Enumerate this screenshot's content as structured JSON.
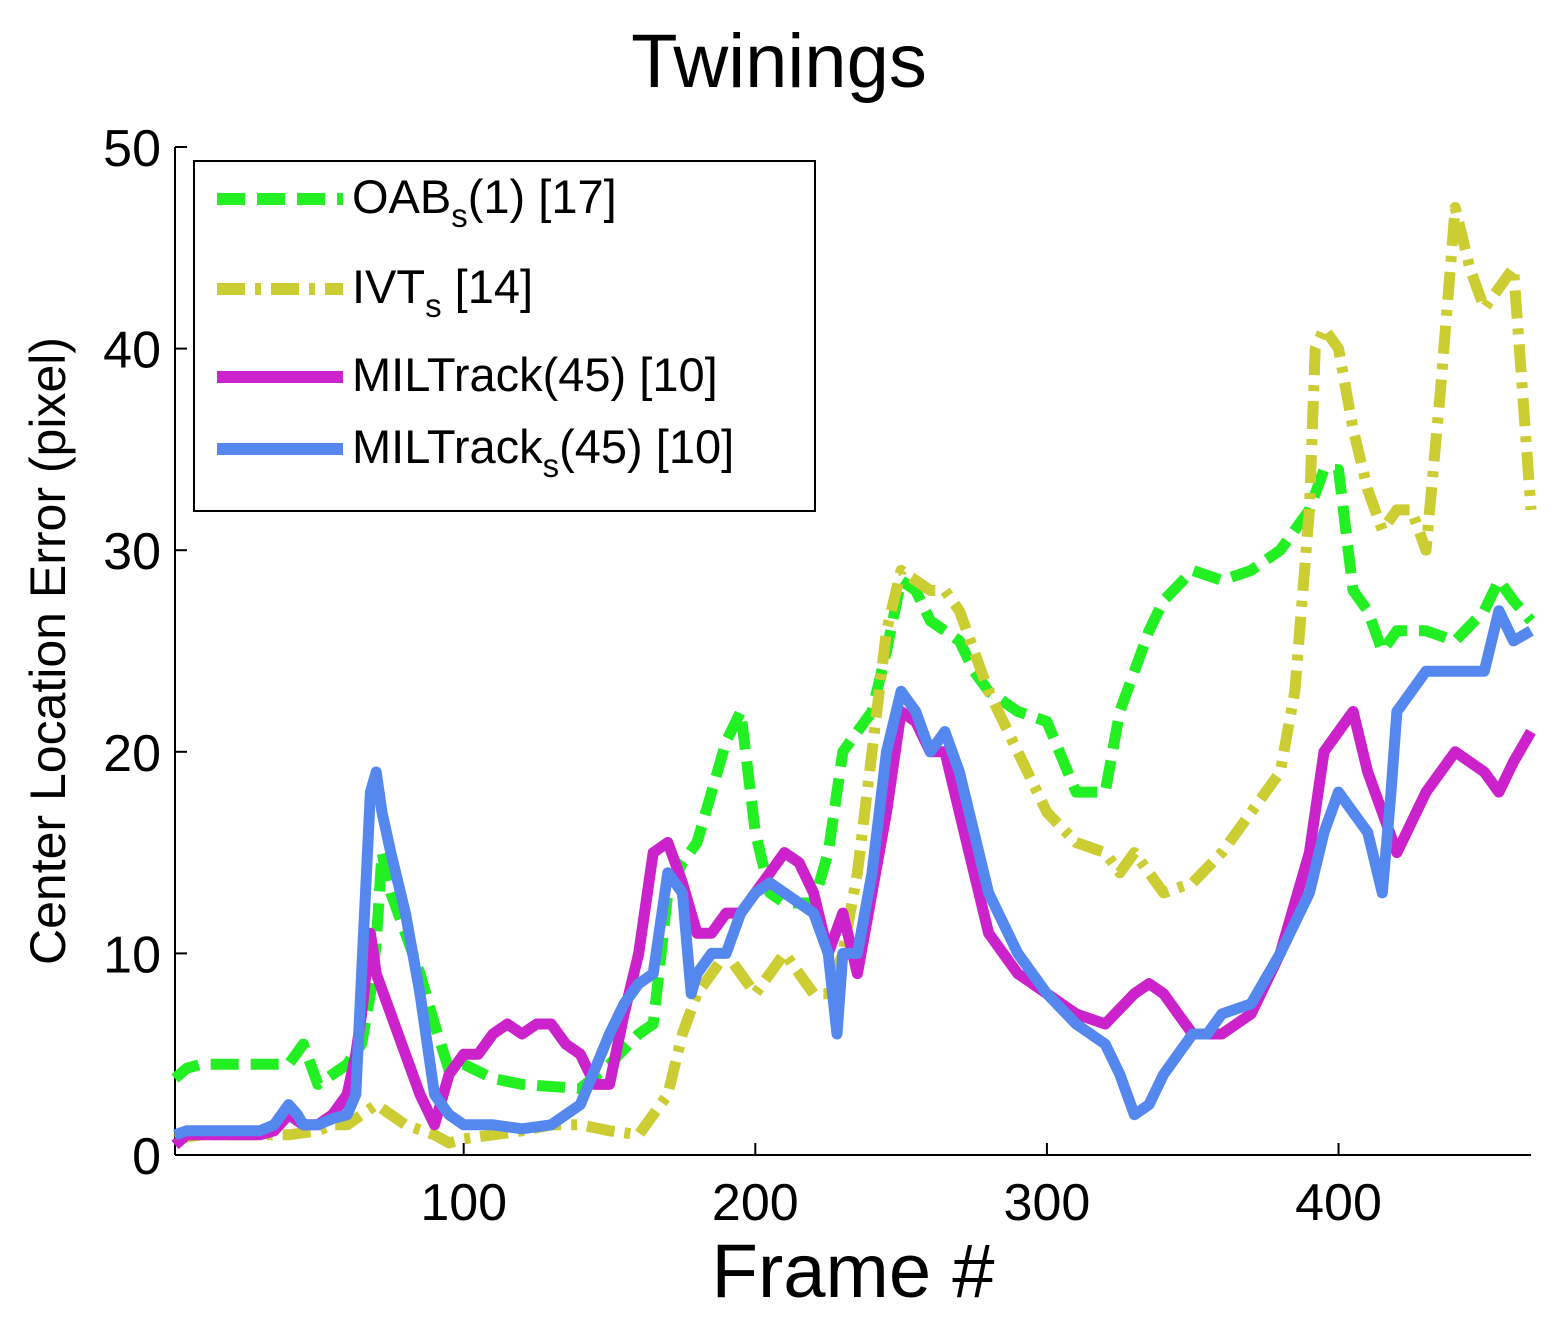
{
  "chart_data": {
    "type": "line",
    "title": "Twinings",
    "xlabel": "Frame #",
    "ylabel": "Center Location Error (pixel)",
    "xlim": [
      1,
      466
    ],
    "ylim": [
      0,
      50
    ],
    "xticks": [
      100,
      200,
      300,
      400
    ],
    "yticks": [
      0,
      10,
      20,
      30,
      40,
      50
    ],
    "grid": false,
    "legend_position": "top-left",
    "series": [
      {
        "name": "OAB(1) [17]",
        "name_main": "OAB",
        "name_sub": "s",
        "name_suffix": "(1) [17]",
        "color": "#22f022",
        "style": "dashed",
        "x": [
          1,
          5,
          10,
          20,
          30,
          40,
          45,
          50,
          55,
          60,
          65,
          68,
          70,
          72,
          75,
          80,
          85,
          90,
          95,
          100,
          110,
          120,
          130,
          140,
          150,
          160,
          165,
          170,
          175,
          180,
          185,
          190,
          195,
          200,
          205,
          210,
          220,
          225,
          230,
          235,
          240,
          245,
          250,
          255,
          260,
          265,
          270,
          275,
          280,
          290,
          300,
          310,
          320,
          325,
          330,
          335,
          340,
          350,
          360,
          370,
          380,
          390,
          395,
          400,
          405,
          410,
          415,
          420,
          430,
          440,
          450,
          455,
          460,
          466
        ],
        "y": [
          3.8,
          4.3,
          4.5,
          4.5,
          4.5,
          4.5,
          5.5,
          3.5,
          4,
          4.5,
          5.5,
          8,
          10.5,
          15,
          13,
          11,
          9,
          6.5,
          4.2,
          4.5,
          3.8,
          3.5,
          3.4,
          3.3,
          4.5,
          6,
          6.5,
          13,
          14.5,
          15.5,
          18,
          20.5,
          22,
          16,
          13,
          12.5,
          12.5,
          15,
          20,
          21,
          22,
          25,
          28.5,
          28,
          26.5,
          26,
          25.5,
          24,
          23,
          22,
          21.5,
          18,
          18,
          22,
          24,
          26,
          27.5,
          29,
          28.5,
          29,
          30,
          32,
          34,
          34,
          28,
          27,
          25,
          26,
          26,
          25.5,
          27,
          28.5,
          27.5,
          26.5
        ]
      },
      {
        "name": "IVT [14]",
        "name_main": "IVT",
        "name_sub": "s",
        "name_suffix": " [14]",
        "color": "#cccc33",
        "style": "dashdot",
        "x": [
          1,
          10,
          20,
          30,
          40,
          50,
          55,
          60,
          65,
          70,
          75,
          80,
          90,
          95,
          100,
          110,
          120,
          130,
          140,
          150,
          160,
          170,
          175,
          180,
          185,
          190,
          195,
          200,
          205,
          210,
          215,
          220,
          225,
          230,
          235,
          240,
          245,
          250,
          255,
          260,
          265,
          270,
          275,
          280,
          290,
          300,
          310,
          320,
          325,
          330,
          340,
          350,
          360,
          370,
          380,
          385,
          390,
          392,
          395,
          400,
          405,
          410,
          415,
          420,
          425,
          430,
          435,
          440,
          445,
          450,
          455,
          460,
          463,
          466
        ],
        "y": [
          0.8,
          1,
          1,
          1,
          1,
          1.2,
          1.5,
          1.5,
          2,
          2.5,
          2,
          1.5,
          1,
          0.6,
          0.8,
          1,
          1.2,
          1.5,
          1.5,
          1.2,
          1,
          3,
          6,
          8,
          9,
          10,
          9,
          8,
          9,
          10,
          9,
          8,
          8,
          10,
          14,
          20,
          26,
          29,
          28.5,
          28,
          28,
          27,
          25,
          23,
          20,
          17,
          15.5,
          15,
          14,
          15,
          13,
          13.5,
          15,
          17,
          19,
          23,
          32,
          40,
          41,
          40,
          36,
          33,
          31,
          32,
          32,
          30,
          38,
          47,
          44,
          42,
          43,
          44,
          38,
          32
        ]
      },
      {
        "name": "MILTrack(45) [10]",
        "color": "#cc22cc",
        "style": "solid",
        "x": [
          1,
          5,
          10,
          20,
          30,
          35,
          40,
          45,
          50,
          55,
          60,
          63,
          65,
          68,
          70,
          75,
          80,
          85,
          90,
          95,
          100,
          105,
          110,
          115,
          120,
          125,
          130,
          135,
          140,
          145,
          150,
          155,
          160,
          165,
          170,
          175,
          180,
          185,
          190,
          195,
          200,
          205,
          210,
          215,
          220,
          225,
          230,
          235,
          240,
          245,
          250,
          255,
          260,
          265,
          270,
          275,
          280,
          285,
          290,
          300,
          310,
          320,
          330,
          335,
          340,
          345,
          350,
          355,
          360,
          370,
          380,
          390,
          395,
          400,
          405,
          410,
          415,
          420,
          430,
          440,
          450,
          455,
          460,
          466
        ],
        "y": [
          0.5,
          1,
          1,
          1,
          1,
          1.2,
          2,
          1.5,
          1.5,
          2,
          3,
          5,
          7,
          11,
          9,
          7,
          5,
          3,
          1.5,
          4,
          5,
          5,
          6,
          6.5,
          6,
          6.5,
          6.5,
          5.5,
          5,
          3.5,
          3.5,
          7,
          10,
          15,
          15.5,
          13.5,
          11,
          11,
          12,
          12,
          13,
          14,
          15,
          14.5,
          13,
          10,
          12,
          9,
          13,
          17,
          22,
          21.5,
          20,
          20,
          17,
          14,
          11,
          10,
          9,
          8,
          7,
          6.5,
          8,
          8.5,
          8,
          7,
          6,
          6,
          6,
          7,
          10,
          15,
          20,
          21,
          22,
          19,
          17,
          15,
          18,
          20,
          19,
          18,
          19.5,
          21
        ]
      },
      {
        "name": "MILTrack(45) [10]",
        "name_main": "MILTrack",
        "name_sub": "s",
        "name_suffix": "(45) [10]",
        "color": "#5588ee",
        "style": "solid",
        "x": [
          1,
          5,
          10,
          20,
          30,
          35,
          40,
          43,
          45,
          50,
          55,
          60,
          63,
          65,
          68,
          70,
          72,
          75,
          80,
          85,
          90,
          95,
          100,
          110,
          120,
          130,
          140,
          150,
          155,
          160,
          165,
          170,
          175,
          178,
          180,
          185,
          190,
          195,
          200,
          205,
          210,
          215,
          220,
          225,
          228,
          230,
          235,
          240,
          245,
          250,
          255,
          260,
          265,
          270,
          275,
          280,
          290,
          300,
          310,
          320,
          325,
          330,
          335,
          340,
          345,
          350,
          355,
          360,
          370,
          380,
          390,
          395,
          400,
          405,
          410,
          415,
          418,
          420,
          430,
          440,
          450,
          455,
          460,
          466
        ],
        "y": [
          1,
          1.2,
          1.2,
          1.2,
          1.2,
          1.5,
          2.5,
          2,
          1.5,
          1.5,
          1.8,
          2,
          3,
          9,
          18,
          19,
          17,
          15,
          12,
          8,
          3,
          2,
          1.5,
          1.5,
          1.3,
          1.5,
          2.5,
          6,
          7.5,
          8.5,
          9,
          14,
          13,
          8,
          9,
          10,
          10,
          12,
          13,
          13.5,
          13,
          12.5,
          12,
          10,
          6,
          10,
          10,
          14,
          20,
          23,
          22,
          20,
          21,
          19,
          16,
          13,
          10,
          8,
          6.5,
          5.5,
          4,
          2,
          2.5,
          4,
          5,
          6,
          6,
          7,
          7.5,
          10,
          13,
          16,
          18,
          17,
          16,
          13,
          18,
          22,
          24,
          24,
          24,
          27,
          25.5,
          26
        ]
      }
    ]
  }
}
